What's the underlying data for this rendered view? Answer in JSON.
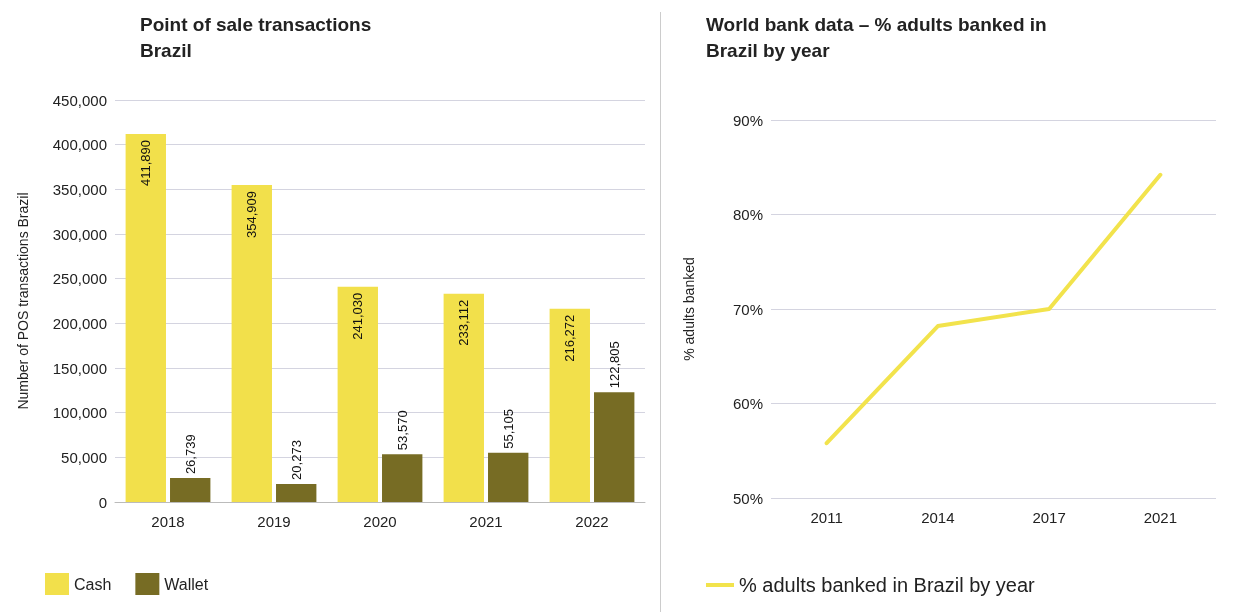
{
  "chart_data": [
    {
      "type": "bar",
      "title": "Point of sale transactions\nBrazil",
      "ylabel": "Number of POS transactions Brazil",
      "categories": [
        "2018",
        "2019",
        "2020",
        "2021",
        "2022"
      ],
      "series": [
        {
          "name": "Cash",
          "color": "#f2e04b",
          "values": [
            411890,
            354909,
            241030,
            233112,
            216272
          ],
          "value_labels": [
            "411,890",
            "354,909",
            "241,030",
            "233,112",
            "216,272"
          ]
        },
        {
          "name": "Wallet",
          "color": "#776c24",
          "values": [
            26739,
            20273,
            53570,
            55105,
            122805
          ],
          "value_labels": [
            "26,739",
            "20,273",
            "53,570",
            "55,105",
            "122,805"
          ]
        }
      ],
      "ylim": [
        0,
        450000
      ],
      "yticks": [
        0,
        {
          "value": 50000,
          "label": "50,000"
        },
        {
          "value": 100000,
          "label": "100,000"
        },
        {
          "value": 150000,
          "label": "150,000"
        },
        {
          "value": 200000,
          "label": "200,000"
        },
        {
          "value": 250000,
          "label": "250,000"
        },
        {
          "value": 300000,
          "label": "300,000"
        },
        {
          "value": 350000,
          "label": "350,000"
        },
        {
          "value": 400000,
          "label": "400,000"
        },
        {
          "value": 450000,
          "label": "450,000"
        }
      ],
      "grid": "y",
      "legend": "bottom left"
    },
    {
      "type": "line",
      "title": "World bank data – % adults banked in\nBrazil by year",
      "ylabel": "% adults banked",
      "categories": [
        "2011",
        "2014",
        "2017",
        "2021"
      ],
      "series": [
        {
          "name": "% adults banked in Brazil by year",
          "color": "#f2e34c",
          "values": [
            55.8,
            68.2,
            70,
            84.2
          ]
        }
      ],
      "ylim": [
        50,
        90
      ],
      "yticks": [
        {
          "value": 50,
          "label": "50%"
        },
        {
          "value": 60,
          "label": "60%"
        },
        {
          "value": 70,
          "label": "70%"
        },
        {
          "value": 80,
          "label": "80%"
        },
        {
          "value": 90,
          "label": "90%"
        }
      ],
      "grid": "y",
      "legend": "bottom left",
      "marker": "none",
      "line_style": "solid"
    }
  ]
}
